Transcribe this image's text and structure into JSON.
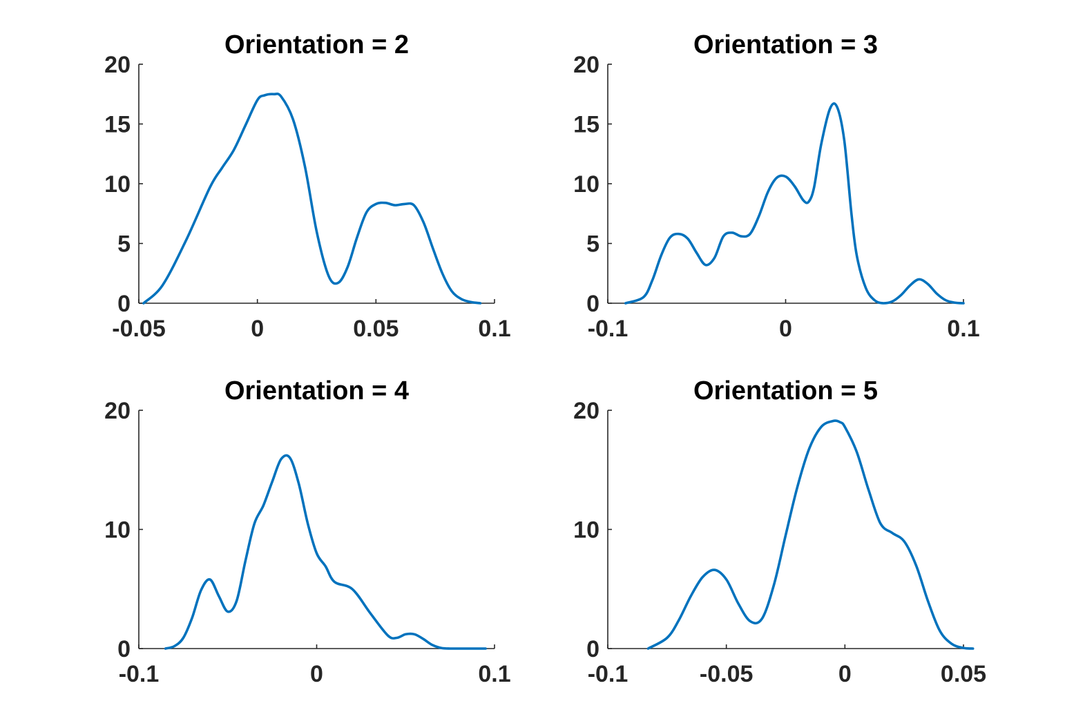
{
  "colors": {
    "line": "#0072BD",
    "axis": "#262626",
    "background": "#ffffff"
  },
  "chart_data": [
    {
      "type": "line",
      "title": "Orientation = 2",
      "xlabel": "",
      "ylabel": "",
      "xlim": [
        -0.05,
        0.1
      ],
      "ylim": [
        0,
        20
      ],
      "xticks": [
        -0.05,
        0,
        0.05,
        0.1
      ],
      "xtick_labels": [
        "-0.05",
        "0",
        "0.05",
        "0.1"
      ],
      "yticks": [
        0,
        5,
        10,
        15,
        20
      ],
      "ytick_labels": [
        "0",
        "5",
        "10",
        "15",
        "20"
      ],
      "grid": false,
      "series": [
        {
          "x": [
            -0.048,
            -0.04,
            -0.03,
            -0.02,
            -0.015,
            -0.01,
            -0.005,
            0,
            0.003,
            0.007,
            0.01,
            0.015,
            0.02,
            0.025,
            0.03,
            0.034,
            0.038,
            0.042,
            0.046,
            0.05,
            0.054,
            0.058,
            0.062,
            0.066,
            0.07,
            0.074,
            0.078,
            0.082,
            0.086,
            0.09,
            0.094
          ],
          "y": [
            0.0,
            1.5,
            5.3,
            9.7,
            11.3,
            12.8,
            14.9,
            17.0,
            17.4,
            17.5,
            17.3,
            15.4,
            11.5,
            6.0,
            2.3,
            1.7,
            3.0,
            5.5,
            7.6,
            8.3,
            8.4,
            8.2,
            8.3,
            8.2,
            6.8,
            4.6,
            2.5,
            1.0,
            0.35,
            0.1,
            0.0
          ]
        }
      ]
    },
    {
      "type": "line",
      "title": "Orientation = 3",
      "xlabel": "",
      "ylabel": "",
      "xlim": [
        -0.1,
        0.1
      ],
      "ylim": [
        0,
        20
      ],
      "xticks": [
        -0.1,
        0,
        0.1
      ],
      "xtick_labels": [
        "-0.1",
        "0",
        "0.1"
      ],
      "yticks": [
        0,
        5,
        10,
        15,
        20
      ],
      "ytick_labels": [
        "0",
        "5",
        "10",
        "15",
        "20"
      ],
      "grid": false,
      "series": [
        {
          "x": [
            -0.09,
            -0.08,
            -0.075,
            -0.07,
            -0.065,
            -0.06,
            -0.055,
            -0.05,
            -0.045,
            -0.04,
            -0.035,
            -0.03,
            -0.025,
            -0.02,
            -0.015,
            -0.01,
            -0.005,
            0,
            0.005,
            0.01,
            0.013,
            0.016,
            0.02,
            0.025,
            0.029,
            0.033,
            0.037,
            0.04,
            0.045,
            0.05,
            0.055,
            0.06,
            0.065,
            0.07,
            0.075,
            0.08,
            0.085,
            0.09,
            0.095,
            0.1
          ],
          "y": [
            0.0,
            0.5,
            1.9,
            4.0,
            5.5,
            5.8,
            5.4,
            4.2,
            3.2,
            3.8,
            5.6,
            5.9,
            5.6,
            5.8,
            7.3,
            9.3,
            10.5,
            10.6,
            9.8,
            8.6,
            8.5,
            9.7,
            13.3,
            16.3,
            16.4,
            13.6,
            7.5,
            4.0,
            1.3,
            0.25,
            0.0,
            0.15,
            0.7,
            1.5,
            2.0,
            1.6,
            0.8,
            0.25,
            0.05,
            0.0
          ]
        }
      ]
    },
    {
      "type": "line",
      "title": "Orientation = 4",
      "xlabel": "",
      "ylabel": "",
      "xlim": [
        -0.1,
        0.1
      ],
      "ylim": [
        0,
        20
      ],
      "xticks": [
        -0.1,
        0,
        0.1
      ],
      "xtick_labels": [
        "-0.1",
        "0",
        "0.1"
      ],
      "yticks": [
        0,
        10,
        20
      ],
      "ytick_labels": [
        "0",
        "10",
        "20"
      ],
      "grid": false,
      "series": [
        {
          "x": [
            -0.085,
            -0.08,
            -0.075,
            -0.07,
            -0.065,
            -0.06,
            -0.055,
            -0.05,
            -0.045,
            -0.04,
            -0.035,
            -0.03,
            -0.025,
            -0.02,
            -0.015,
            -0.01,
            -0.005,
            0,
            0.005,
            0.01,
            0.02,
            0.03,
            0.04,
            0.045,
            0.05,
            0.055,
            0.06,
            0.065,
            0.07,
            0.075,
            0.08,
            0.085,
            0.09,
            0.095
          ],
          "y": [
            0.0,
            0.2,
            0.9,
            2.6,
            4.9,
            5.8,
            4.4,
            3.1,
            4.0,
            7.4,
            10.5,
            12.0,
            14.0,
            15.9,
            16.0,
            13.8,
            10.5,
            8.0,
            6.9,
            5.6,
            5.0,
            3.0,
            1.1,
            0.9,
            1.2,
            1.2,
            0.8,
            0.3,
            0.05,
            0.0,
            0.0,
            0.0,
            0.0,
            0.0
          ]
        }
      ]
    },
    {
      "type": "line",
      "title": "Orientation = 5",
      "xlabel": "",
      "ylabel": "",
      "xlim": [
        -0.1,
        0.05
      ],
      "ylim": [
        0,
        20
      ],
      "xticks": [
        -0.1,
        -0.05,
        0,
        0.05
      ],
      "xtick_labels": [
        "-0.1",
        "-0.05",
        "0",
        "0.05"
      ],
      "yticks": [
        0,
        10,
        20
      ],
      "ytick_labels": [
        "0",
        "10",
        "20"
      ],
      "grid": false,
      "series": [
        {
          "x": [
            -0.083,
            -0.075,
            -0.07,
            -0.065,
            -0.06,
            -0.055,
            -0.05,
            -0.045,
            -0.04,
            -0.035,
            -0.03,
            -0.025,
            -0.02,
            -0.015,
            -0.01,
            -0.005,
            -0.002,
            0,
            0.005,
            0.01,
            0.015,
            0.02,
            0.025,
            0.03,
            0.035,
            0.04,
            0.045,
            0.05,
            0.054
          ],
          "y": [
            0.0,
            0.9,
            2.4,
            4.4,
            6.0,
            6.6,
            5.8,
            3.8,
            2.3,
            2.5,
            5.3,
            9.5,
            13.6,
            16.8,
            18.6,
            19.1,
            19.0,
            18.6,
            16.5,
            13.3,
            10.5,
            9.7,
            9.0,
            7.0,
            4.0,
            1.5,
            0.4,
            0.05,
            0.0
          ]
        }
      ]
    }
  ]
}
